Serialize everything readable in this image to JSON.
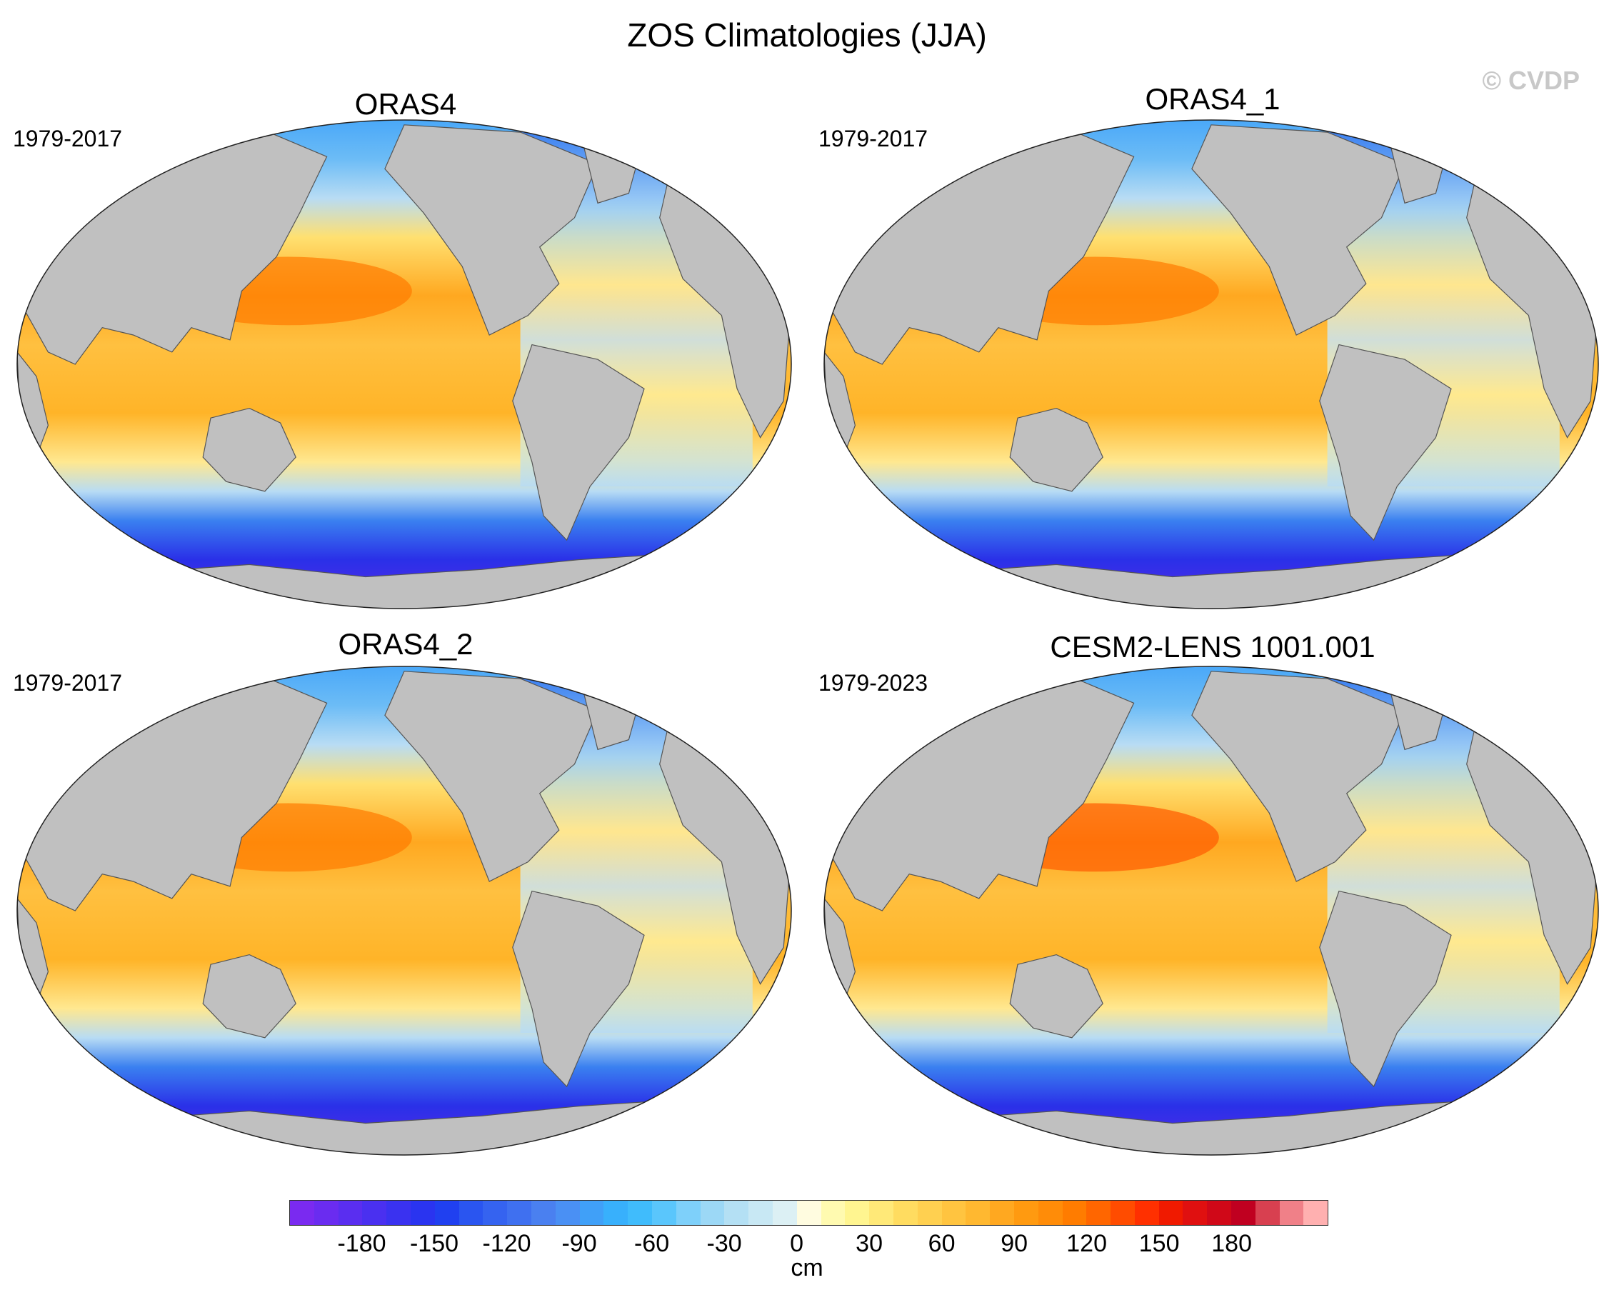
{
  "figure_title": "ZOS Climatologies (JJA)",
  "copyright": "© CVDP",
  "panels": [
    {
      "title": "ORAS4",
      "period": "1979-2017"
    },
    {
      "title": "ORAS4_1",
      "period": "1979-2017"
    },
    {
      "title": "ORAS4_2",
      "period": "1979-2017"
    },
    {
      "title": "CESM2-LENS 1001.001",
      "period": "1979-2023"
    }
  ],
  "colorbar": {
    "units": "cm",
    "ticks": [
      "-180",
      "-150",
      "-120",
      "-90",
      "-60",
      "-30",
      "0",
      "30",
      "60",
      "90",
      "120",
      "150",
      "180"
    ],
    "colors": [
      "#7a2af0",
      "#6a2cf0",
      "#5a2ef0",
      "#4a30f0",
      "#3a32f0",
      "#2a34f0",
      "#2040f0",
      "#2a55f0",
      "#3563f0",
      "#3f70f0",
      "#4a80f0",
      "#4a90f4",
      "#40a0f8",
      "#38b0fc",
      "#40bcfc",
      "#5ac6fc",
      "#7ed0fa",
      "#9cd8f6",
      "#b4e0f4",
      "#c8e8f4",
      "#dcf0f4",
      "#fffce0",
      "#fffab0",
      "#fff590",
      "#ffe978",
      "#ffdc60",
      "#ffd050",
      "#ffc440",
      "#ffb830",
      "#ffa820",
      "#ff9a10",
      "#ff8c08",
      "#ff7c00",
      "#ff6600",
      "#ff4c00",
      "#ff3000",
      "#f01a00",
      "#e01010",
      "#d00818",
      "#c00020",
      "#d84050",
      "#f08088",
      "#ffb0b0"
    ]
  },
  "map_colors": {
    "land": "#c0c0c0",
    "ocean_warm": "#ffb020",
    "ocean_hot": "#ff7a00",
    "ocean_light": "#fff2a0",
    "ocean_cool": "#b8dcf4",
    "ocean_blue": "#4aa8f8",
    "ocean_deep": "#2a36e8",
    "ocean_violet": "#6a2ae8",
    "ice": "#ffffff"
  }
}
